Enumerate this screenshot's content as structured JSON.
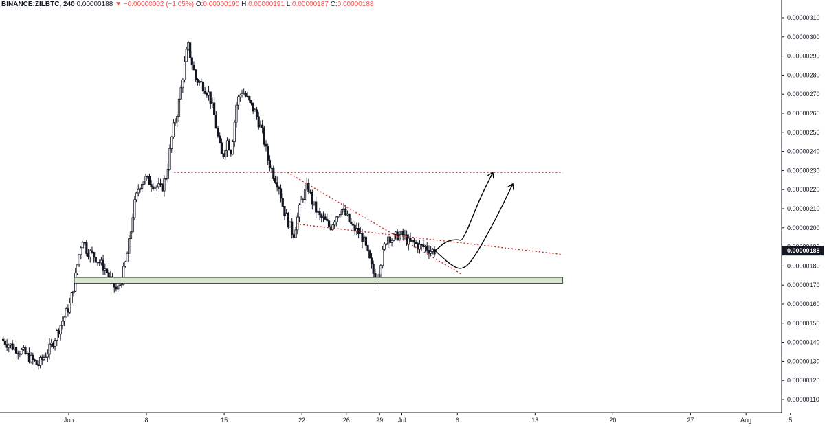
{
  "header": {
    "symbol": "BINANCE:ZILBTC, 240",
    "last": "0.00000188",
    "arrow": "▼",
    "change": "−0.00000002 (−1.05%)",
    "o_label": "O:",
    "o_value": "0.00000190",
    "h_label": "H:",
    "h_value": "0.00000191",
    "l_label": "L:",
    "l_value": "0.00000187",
    "c_label": "C:",
    "c_value": "0.00000188"
  },
  "current_price_label": "0.00000188",
  "colors": {
    "candle": "#131722",
    "trendline": "#c62828",
    "support_fill": "#d6e4d0",
    "support_stroke": "#1b2a1b",
    "price_box": "#131722"
  },
  "chart_data": {
    "type": "candlestick",
    "timeframe": "240",
    "yscale": "linear",
    "ylim": [
      1.04e-06,
      3.12e-06
    ],
    "y_ticks": [
      {
        "value": 3.1e-06,
        "label": "0.00000310"
      },
      {
        "value": 3e-06,
        "label": "0.00000300"
      },
      {
        "value": 2.9e-06,
        "label": "0.00000290"
      },
      {
        "value": 2.8e-06,
        "label": "0.00000280"
      },
      {
        "value": 2.7e-06,
        "label": "0.00000270"
      },
      {
        "value": 2.6e-06,
        "label": "0.00000260"
      },
      {
        "value": 2.5e-06,
        "label": "0.00000250"
      },
      {
        "value": 2.4e-06,
        "label": "0.00000240"
      },
      {
        "value": 2.3e-06,
        "label": "0.00000230"
      },
      {
        "value": 2.2e-06,
        "label": "0.00000220"
      },
      {
        "value": 2.1e-06,
        "label": "0.00000210"
      },
      {
        "value": 2e-06,
        "label": "0.00000200"
      },
      {
        "value": 1.9e-06,
        "label": "0.00000190"
      },
      {
        "value": 1.8e-06,
        "label": "0.00000180"
      },
      {
        "value": 1.7e-06,
        "label": "0.00000170"
      },
      {
        "value": 1.6e-06,
        "label": "0.00000160"
      },
      {
        "value": 1.5e-06,
        "label": "0.00000150"
      },
      {
        "value": 1.4e-06,
        "label": "0.00000140"
      },
      {
        "value": 1.3e-06,
        "label": "0.00000130"
      },
      {
        "value": 1.2e-06,
        "label": "0.00000120"
      },
      {
        "value": 1.1e-06,
        "label": "0.00000110"
      }
    ],
    "x_ticks": [
      {
        "day": 0,
        "label": "Jun"
      },
      {
        "day": 7,
        "label": "8"
      },
      {
        "day": 14,
        "label": "15"
      },
      {
        "day": 21,
        "label": "22"
      },
      {
        "day": 25,
        "label": "26"
      },
      {
        "day": 28,
        "label": "29"
      },
      {
        "day": 30,
        "label": "Jul"
      },
      {
        "day": 35,
        "label": "6"
      },
      {
        "day": 42,
        "label": "13"
      },
      {
        "day": 49,
        "label": "20"
      },
      {
        "day": 56,
        "label": "27"
      },
      {
        "day": 61,
        "label": "Aug"
      },
      {
        "day": 65,
        "label": "5"
      }
    ],
    "x_range_days": [
      -6,
      68.5
    ],
    "path_keypoints": [
      [
        -6.0,
        142
      ],
      [
        -5.0,
        138
      ],
      [
        -4.0,
        135
      ],
      [
        -3.0,
        130
      ],
      [
        -2.6,
        128
      ],
      [
        -1.5,
        137
      ],
      [
        -0.5,
        150
      ],
      [
        0.3,
        160
      ],
      [
        0.7,
        172
      ],
      [
        1.0,
        183
      ],
      [
        1.4,
        195
      ],
      [
        1.8,
        188
      ],
      [
        2.5,
        185
      ],
      [
        3.5,
        178
      ],
      [
        4.0,
        172
      ],
      [
        4.5,
        167
      ],
      [
        4.9,
        172
      ],
      [
        5.3,
        182
      ],
      [
        5.7,
        195
      ],
      [
        6.0,
        210
      ],
      [
        6.5,
        222
      ],
      [
        7.0,
        226
      ],
      [
        7.5,
        224
      ],
      [
        8.0,
        222
      ],
      [
        8.5,
        220
      ],
      [
        9.0,
        228
      ],
      [
        9.5,
        250
      ],
      [
        10.0,
        262
      ],
      [
        10.5,
        282
      ],
      [
        10.9,
        296
      ],
      [
        11.2,
        288
      ],
      [
        11.6,
        278
      ],
      [
        12.2,
        275
      ],
      [
        12.8,
        270
      ],
      [
        13.3,
        258
      ],
      [
        13.7,
        244
      ],
      [
        14.0,
        236
      ],
      [
        14.4,
        246
      ],
      [
        14.8,
        240
      ],
      [
        15.3,
        266
      ],
      [
        15.8,
        272
      ],
      [
        16.4,
        266
      ],
      [
        17.0,
        260
      ],
      [
        17.6,
        250
      ],
      [
        18.1,
        236
      ],
      [
        18.6,
        228
      ],
      [
        19.1,
        222
      ],
      [
        19.5,
        210
      ],
      [
        20.0,
        202
      ],
      [
        20.4,
        196
      ],
      [
        20.8,
        206
      ],
      [
        21.2,
        216
      ],
      [
        21.7,
        222
      ],
      [
        22.2,
        212
      ],
      [
        22.7,
        206
      ],
      [
        23.2,
        204
      ],
      [
        23.7,
        200
      ],
      [
        24.2,
        206
      ],
      [
        24.7,
        210
      ],
      [
        25.2,
        206
      ],
      [
        25.7,
        200
      ],
      [
        26.2,
        198
      ],
      [
        26.7,
        194
      ],
      [
        27.1,
        186
      ],
      [
        27.5,
        178
      ],
      [
        27.8,
        173
      ],
      [
        28.1,
        178
      ],
      [
        28.5,
        188
      ],
      [
        28.9,
        196
      ],
      [
        29.3,
        194
      ],
      [
        29.8,
        196
      ],
      [
        30.3,
        196
      ],
      [
        30.8,
        192
      ],
      [
        31.3,
        192
      ],
      [
        31.8,
        190
      ],
      [
        32.3,
        190
      ],
      [
        32.8,
        188
      ],
      [
        33.1,
        188
      ]
    ],
    "annotations": [
      {
        "type": "horizontal-dotted-line",
        "value": 2.29e-06,
        "x_start_day": 9.5,
        "x_end_day": 44.5
      },
      {
        "type": "descending-dotted-trendline",
        "start": [
          19.7,
          2.29e-06
        ],
        "end": [
          35.3,
          1.76e-06
        ]
      },
      {
        "type": "descending-dotted-trendline",
        "start": [
          20.5,
          2.02e-06
        ],
        "end": [
          44.5,
          1.86e-06
        ]
      },
      {
        "type": "support-zone",
        "y_low": 1.71e-06,
        "y_high": 1.74e-06,
        "x_start_day": 0.5,
        "x_end_day": 44.5
      },
      {
        "type": "projected-path-arrow",
        "points": [
          [
            33.0,
            1.88e-06
          ],
          [
            34.0,
            1.93e-06
          ],
          [
            35.0,
            1.94e-06
          ],
          [
            35.5,
            1.93e-06
          ],
          [
            37.0,
            2.15e-06
          ],
          [
            38.2,
            2.29e-06
          ]
        ]
      },
      {
        "type": "projected-path-arrow",
        "points": [
          [
            33.0,
            1.88e-06
          ],
          [
            34.5,
            1.8e-06
          ],
          [
            35.5,
            1.78e-06
          ],
          [
            36.5,
            1.84e-06
          ],
          [
            38.5,
            2.05e-06
          ],
          [
            40.0,
            2.23e-06
          ]
        ]
      }
    ],
    "current_price": 1.88e-06
  }
}
